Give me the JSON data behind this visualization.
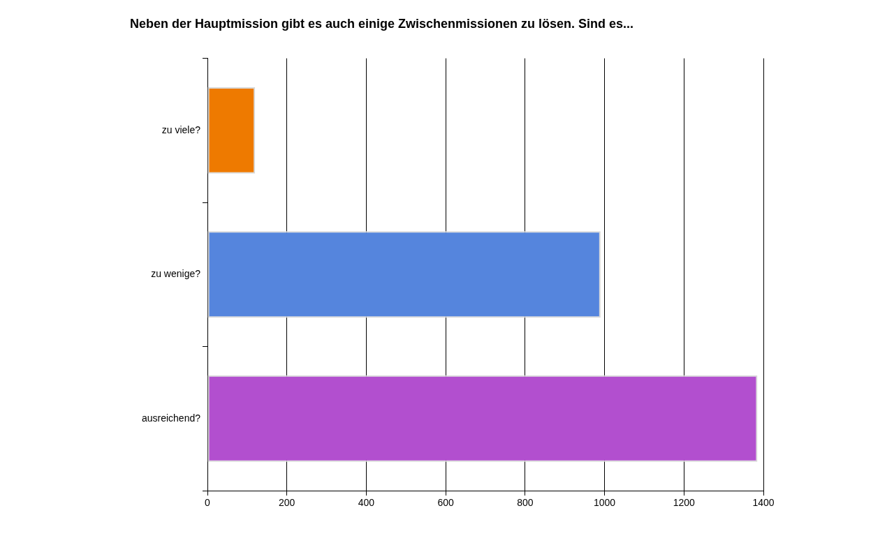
{
  "chart_data": {
    "type": "bar",
    "orientation": "horizontal",
    "title": "Neben der Hauptmission gibt es auch einige Zwischenmissionen zu lösen. Sind es...",
    "categories": [
      "zu viele?",
      "zu wenige?",
      "ausreichend?"
    ],
    "values": [
      120,
      990,
      1385
    ],
    "colors": [
      "#ee7a00",
      "#5585dd",
      "#b24fcf"
    ],
    "xlim": [
      0,
      1400
    ],
    "xticks": [
      0,
      200,
      400,
      600,
      800,
      1000,
      1200,
      1400
    ],
    "grid": "x",
    "legend": false
  }
}
